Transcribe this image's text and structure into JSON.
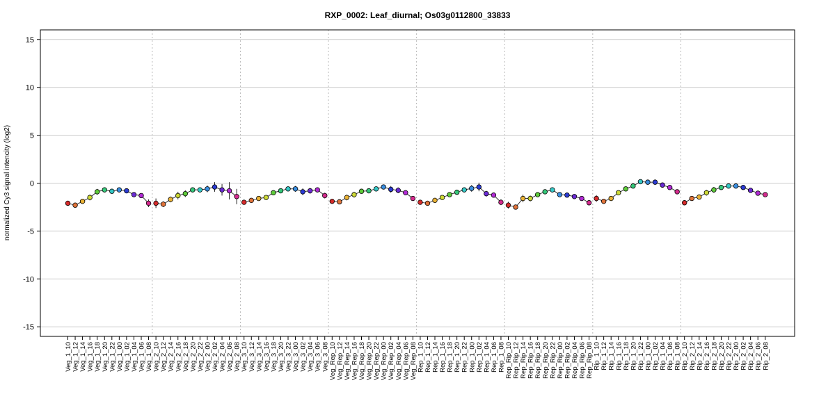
{
  "chart_data": {
    "type": "line",
    "title": "RXP_0002: Leaf_diurnal; Os03g0112800_33833",
    "xlabel": "",
    "ylabel": "normalized Cy3 signal intencity (log2)",
    "ylim": [
      -16,
      16
    ],
    "yticks": [
      -15,
      -10,
      -5,
      0,
      5,
      10,
      15
    ],
    "grid": true,
    "categories": [
      "Veg_1_10",
      "Veg_1_12",
      "Veg_1_14",
      "Veg_1_16",
      "Veg_1_18",
      "Veg_1_20",
      "Veg_1_22",
      "Veg_1_00",
      "Veg_1_02",
      "Veg_1_04",
      "Veg_1_06",
      "Veg_1_08",
      "Veg_2_10",
      "Veg_2_12",
      "Veg_2_14",
      "Veg_2_16",
      "Veg_2_18",
      "Veg_2_20",
      "Veg_2_22",
      "Veg_2_00",
      "Veg_2_02",
      "Veg_2_04",
      "Veg_2_06",
      "Veg_2_08",
      "Veg_3_10",
      "Veg_3_12",
      "Veg_3_14",
      "Veg_3_16",
      "Veg_3_18",
      "Veg_3_20",
      "Veg_3_22",
      "Veg_3_00",
      "Veg_3_02",
      "Veg_3_04",
      "Veg_3_06",
      "Veg_3_08",
      "Veg_Rep_10",
      "Veg_Rep_12",
      "Veg_Rep_14",
      "Veg_Rep_16",
      "Veg_Rep_18",
      "Veg_Rep_20",
      "Veg_Rep_22",
      "Veg_Rep_00",
      "Veg_Rep_02",
      "Veg_Rep_04",
      "Veg_Rep_06",
      "Veg_Rep_08",
      "Rep_1_10",
      "Rep_1_12",
      "Rep_1_14",
      "Rep_1_16",
      "Rep_1_18",
      "Rep_1_20",
      "Rep_1_22",
      "Rep_1_00",
      "Rep_1_02",
      "Rep_1_04",
      "Rep_1_06",
      "Rep_1_08",
      "Rep_Rip_10",
      "Rep_Rip_12",
      "Rep_Rip_14",
      "Rep_Rip_16",
      "Rep_Rip_18",
      "Rep_Rip_20",
      "Rep_Rip_22",
      "Rep_Rip_00",
      "Rep_Rip_02",
      "Rep_Rip_04",
      "Rep_Rip_06",
      "Rep_Rip_08",
      "Rip_1_10",
      "Rip_1_12",
      "Rip_1_14",
      "Rip_1_16",
      "Rip_1_18",
      "Rip_1_20",
      "Rip_1_22",
      "Rip_1_00",
      "Rip_1_02",
      "Rip_1_04",
      "Rip_1_06",
      "Rip_1_08",
      "Rip_2_10",
      "Rip_2_12",
      "Rip_2_14",
      "Rip_2_16",
      "Rip_2_18",
      "Rip_2_20",
      "Rip_2_22",
      "Rip_2_00",
      "Rip_2_02",
      "Rip_2_04",
      "Rip_2_06",
      "Rip_2_08"
    ],
    "values": [
      -2.1,
      -2.3,
      -1.9,
      -1.5,
      -0.9,
      -0.7,
      -0.85,
      -0.7,
      -0.8,
      -1.2,
      -1.3,
      -2.1,
      -2.1,
      -2.2,
      -1.7,
      -1.3,
      -1.1,
      -0.7,
      -0.7,
      -0.6,
      -0.4,
      -0.7,
      -0.8,
      -1.4,
      -2.0,
      -1.8,
      -1.6,
      -1.5,
      -1.0,
      -0.8,
      -0.6,
      -0.6,
      -0.9,
      -0.8,
      -0.7,
      -1.3,
      -1.9,
      -1.95,
      -1.5,
      -1.2,
      -0.85,
      -0.8,
      -0.6,
      -0.4,
      -0.65,
      -0.75,
      -1.0,
      -1.6,
      -2.0,
      -2.1,
      -1.8,
      -1.5,
      -1.2,
      -0.95,
      -0.7,
      -0.55,
      -0.4,
      -1.1,
      -1.25,
      -2.0,
      -2.3,
      -2.5,
      -1.6,
      -1.6,
      -1.2,
      -0.9,
      -0.7,
      -1.2,
      -1.25,
      -1.4,
      -1.6,
      -2.05,
      -1.6,
      -1.9,
      -1.6,
      -1.0,
      -0.6,
      -0.3,
      0.15,
      0.1,
      0.1,
      -0.2,
      -0.45,
      -0.9,
      -2.05,
      -1.6,
      -1.45,
      -1.0,
      -0.7,
      -0.45,
      -0.3,
      -0.3,
      -0.45,
      -0.75,
      -1.05,
      -1.2
    ],
    "errors": [
      0.2,
      0.15,
      0.25,
      0.3,
      0.3,
      0.25,
      0.2,
      0.2,
      0.2,
      0.2,
      0.25,
      0.4,
      0.5,
      0.3,
      0.3,
      0.4,
      0.35,
      0.25,
      0.2,
      0.35,
      0.5,
      0.6,
      0.9,
      0.8,
      0.25,
      0.2,
      0.2,
      0.2,
      0.25,
      0.25,
      0.2,
      0.3,
      0.35,
      0.3,
      0.25,
      0.3,
      0.2,
      0.2,
      0.3,
      0.3,
      0.2,
      0.2,
      0.2,
      0.2,
      0.35,
      0.3,
      0.25,
      0.2,
      0.2,
      0.2,
      0.2,
      0.2,
      0.2,
      0.2,
      0.25,
      0.35,
      0.45,
      0.3,
      0.25,
      0.3,
      0.35,
      0.25,
      0.4,
      0.3,
      0.25,
      0.2,
      0.25,
      0.25,
      0.2,
      0.2,
      0.2,
      0.2,
      0.35,
      0.2,
      0.2,
      0.2,
      0.2,
      0.2,
      0.2,
      0.2,
      0.2,
      0.2,
      0.2,
      0.2,
      0.2,
      0.2,
      0.2,
      0.3,
      0.3,
      0.25,
      0.2,
      0.2,
      0.2,
      0.2,
      0.2,
      0.2
    ],
    "point_colors": [
      "#d52b2b",
      "#e0733a",
      "#e9b235",
      "#cdd935",
      "#5ecb3a",
      "#35c87a",
      "#35c7c5",
      "#3a8ee0",
      "#2b3bd4",
      "#6a2bd4",
      "#b12bd4",
      "#d42b8e"
    ],
    "line_color": "#333333"
  }
}
